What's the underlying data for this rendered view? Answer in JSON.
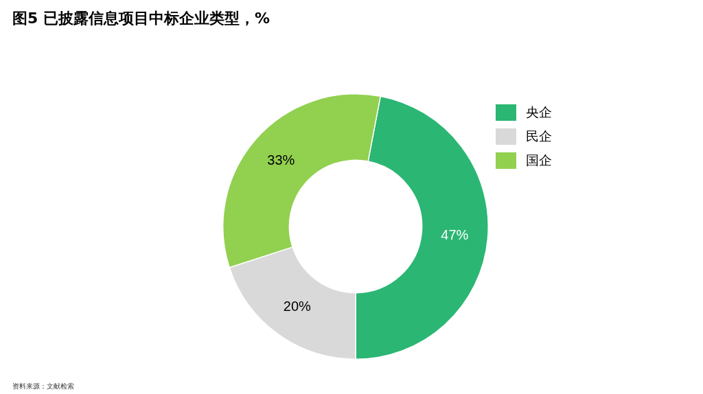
{
  "chart_data": {
    "type": "donut",
    "title": "图5  已披露信息项目中标企业类型，%",
    "categories": [
      "央企",
      "民企",
      "国企"
    ],
    "values": [
      47,
      20,
      33
    ],
    "colors": [
      "#2bb673",
      "#d9d9d9",
      "#92d050"
    ],
    "value_labels": [
      "47%",
      "20%",
      "33%"
    ],
    "legend": "top right",
    "annotations": [
      "资料来源：文献检索"
    ]
  }
}
